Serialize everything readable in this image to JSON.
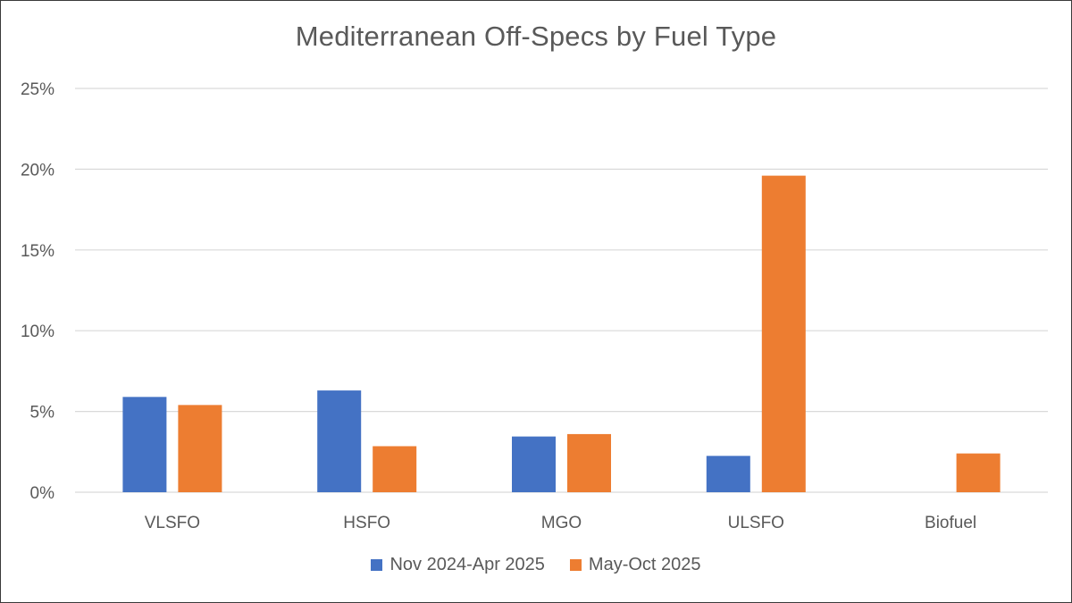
{
  "chart_data": {
    "type": "bar",
    "title": "Mediterranean Off-Specs by Fuel Type",
    "xlabel": "",
    "ylabel": "",
    "categories": [
      "VLSFO",
      "HSFO",
      "MGO",
      "ULSFO",
      "Biofuel"
    ],
    "series": [
      {
        "name": "Nov 2024-Apr 2025",
        "color": "#4472C4",
        "values": [
          5.9,
          6.3,
          3.45,
          2.25,
          null
        ]
      },
      {
        "name": "May-Oct 2025",
        "color": "#ED7D31",
        "values": [
          5.4,
          2.85,
          3.6,
          19.6,
          2.4
        ]
      }
    ],
    "ylim": [
      0,
      25
    ],
    "yticks": [
      0,
      5,
      10,
      15,
      20,
      25
    ],
    "ytick_labels": [
      "0%",
      "5%",
      "10%",
      "15%",
      "20%",
      "25%"
    ],
    "grid": true,
    "legend_position": "bottom"
  }
}
